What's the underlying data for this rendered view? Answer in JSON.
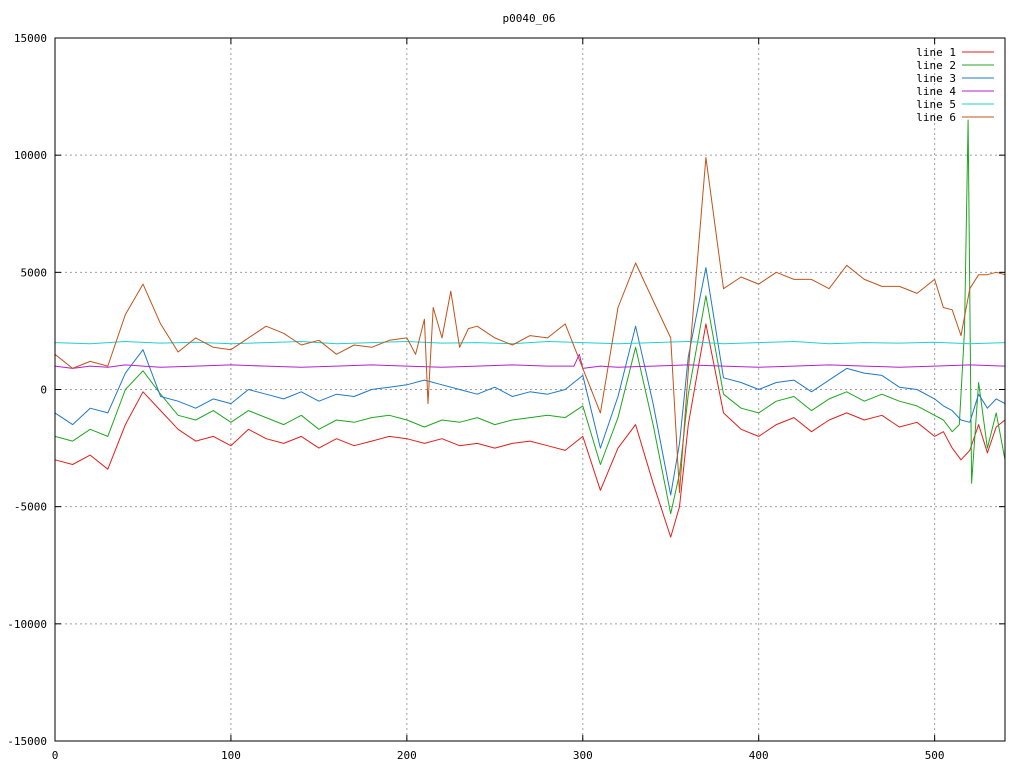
{
  "chart_data": {
    "type": "line",
    "title": "p0040_06",
    "xlabel": "",
    "ylabel": "",
    "xlim": [
      0,
      540
    ],
    "ylim": [
      -15000,
      15000
    ],
    "x_ticks": [
      0,
      100,
      200,
      300,
      400,
      500
    ],
    "y_ticks": [
      -15000,
      -10000,
      -5000,
      0,
      5000,
      10000,
      15000
    ],
    "x_tick_labels": [
      "0",
      "100",
      "200",
      "300",
      "400",
      "500"
    ],
    "y_tick_labels": [
      "-15000",
      "-10000",
      "-5000",
      "0",
      "5000",
      "10000",
      "15000"
    ],
    "grid": true,
    "legend_position": "top-right",
    "series": [
      {
        "name": "line 1",
        "color": "#e0201b",
        "x": [
          0,
          10,
          20,
          30,
          40,
          50,
          60,
          70,
          80,
          90,
          100,
          110,
          120,
          130,
          140,
          150,
          160,
          170,
          180,
          190,
          200,
          210,
          220,
          230,
          240,
          250,
          260,
          270,
          280,
          290,
          300,
          310,
          320,
          330,
          340,
          350,
          355,
          360,
          370,
          380,
          390,
          400,
          410,
          420,
          430,
          440,
          450,
          460,
          470,
          480,
          490,
          500,
          505,
          510,
          515,
          520,
          525,
          530,
          535,
          540
        ],
        "y": [
          -3000,
          -3200,
          -2800,
          -3400,
          -1500,
          -100,
          -900,
          -1700,
          -2200,
          -2000,
          -2400,
          -1700,
          -2100,
          -2300,
          -2000,
          -2500,
          -2100,
          -2400,
          -2200,
          -2000,
          -2100,
          -2300,
          -2100,
          -2400,
          -2300,
          -2500,
          -2300,
          -2200,
          -2400,
          -2600,
          -2000,
          -4300,
          -2500,
          -1500,
          -4000,
          -6300,
          -5000,
          -1500,
          2800,
          -1000,
          -1700,
          -2000,
          -1500,
          -1200,
          -1800,
          -1300,
          -1000,
          -1300,
          -1100,
          -1600,
          -1400,
          -2000,
          -1800,
          -2500,
          -3000,
          -2600,
          -1500,
          -2700,
          -1600,
          -1300
        ]
      },
      {
        "name": "line 2",
        "color": "#1fa71f",
        "x": [
          0,
          10,
          20,
          30,
          40,
          50,
          60,
          70,
          80,
          90,
          100,
          110,
          120,
          130,
          140,
          150,
          160,
          170,
          180,
          190,
          200,
          210,
          220,
          230,
          240,
          250,
          260,
          270,
          280,
          290,
          300,
          310,
          320,
          330,
          340,
          350,
          355,
          360,
          370,
          380,
          390,
          400,
          410,
          420,
          430,
          440,
          450,
          460,
          470,
          480,
          490,
          500,
          505,
          510,
          514,
          517,
          519,
          521,
          525,
          530,
          535,
          540
        ],
        "y": [
          -2000,
          -2200,
          -1700,
          -2000,
          0,
          800,
          -200,
          -1100,
          -1300,
          -900,
          -1400,
          -900,
          -1200,
          -1500,
          -1100,
          -1700,
          -1300,
          -1400,
          -1200,
          -1100,
          -1300,
          -1600,
          -1300,
          -1400,
          -1200,
          -1500,
          -1300,
          -1200,
          -1100,
          -1200,
          -700,
          -3200,
          -1200,
          1800,
          -1500,
          -5300,
          -3600,
          -200,
          4000,
          -200,
          -800,
          -1000,
          -500,
          -300,
          -900,
          -400,
          -100,
          -500,
          -200,
          -500,
          -700,
          -1100,
          -1300,
          -1800,
          -1500,
          2500,
          11500,
          -4000,
          300,
          -2500,
          -1000,
          -3000
        ]
      },
      {
        "name": "line 3",
        "color": "#1f78c8",
        "x": [
          0,
          10,
          20,
          30,
          40,
          50,
          60,
          70,
          80,
          90,
          100,
          110,
          120,
          130,
          140,
          150,
          160,
          170,
          180,
          190,
          200,
          210,
          220,
          230,
          240,
          250,
          260,
          270,
          280,
          290,
          300,
          310,
          320,
          330,
          340,
          350,
          355,
          360,
          370,
          380,
          390,
          400,
          410,
          420,
          430,
          440,
          450,
          460,
          470,
          480,
          490,
          500,
          505,
          510,
          515,
          520,
          525,
          530,
          535,
          540
        ],
        "y": [
          -1000,
          -1500,
          -800,
          -1000,
          700,
          1700,
          -300,
          -500,
          -800,
          -400,
          -600,
          0,
          -200,
          -400,
          -100,
          -500,
          -200,
          -300,
          0,
          100,
          200,
          400,
          200,
          0,
          -200,
          100,
          -300,
          -100,
          -200,
          0,
          600,
          -2500,
          -300,
          2700,
          -600,
          -4500,
          -2300,
          1400,
          5200,
          500,
          300,
          0,
          300,
          400,
          -100,
          400,
          900,
          700,
          600,
          100,
          0,
          -400,
          -700,
          -900,
          -1300,
          -1400,
          -200,
          -800,
          -400,
          -600
        ]
      },
      {
        "name": "line 4",
        "color": "#b41fd1",
        "x": [
          0,
          10,
          20,
          30,
          40,
          50,
          60,
          80,
          100,
          120,
          140,
          160,
          180,
          200,
          220,
          240,
          260,
          280,
          295,
          298,
          300,
          310,
          320,
          340,
          360,
          380,
          400,
          420,
          440,
          460,
          480,
          500,
          520,
          540
        ],
        "y": [
          1000,
          900,
          1000,
          950,
          1050,
          1000,
          950,
          1000,
          1050,
          1000,
          950,
          1000,
          1050,
          1000,
          950,
          1000,
          1050,
          1000,
          1000,
          1500,
          900,
          1000,
          950,
          1000,
          1050,
          1000,
          950,
          1000,
          1050,
          1000,
          950,
          1000,
          1050,
          1000
        ]
      },
      {
        "name": "line 5",
        "color": "#1fd1d1",
        "x": [
          0,
          20,
          40,
          60,
          80,
          100,
          120,
          140,
          160,
          180,
          200,
          220,
          240,
          260,
          280,
          300,
          320,
          340,
          360,
          380,
          400,
          420,
          440,
          460,
          480,
          500,
          520,
          540
        ],
        "y": [
          2000,
          1950,
          2050,
          1980,
          2020,
          1950,
          2000,
          2050,
          1950,
          2000,
          2050,
          1980,
          2000,
          1950,
          2050,
          2000,
          1950,
          2000,
          2050,
          1950,
          2000,
          2050,
          1950,
          2000,
          1980,
          2020,
          1950,
          2000
        ]
      },
      {
        "name": "line 6",
        "color": "#c0541b",
        "x": [
          0,
          10,
          20,
          30,
          40,
          50,
          60,
          70,
          80,
          90,
          100,
          110,
          120,
          130,
          140,
          150,
          160,
          170,
          180,
          190,
          200,
          205,
          210,
          212,
          215,
          220,
          225,
          230,
          235,
          240,
          250,
          260,
          270,
          280,
          290,
          300,
          310,
          320,
          330,
          340,
          350,
          355,
          360,
          370,
          380,
          390,
          400,
          410,
          420,
          430,
          440,
          450,
          460,
          470,
          480,
          490,
          500,
          505,
          510,
          515,
          520,
          525,
          530,
          535,
          540
        ],
        "y": [
          1500,
          900,
          1200,
          1000,
          3200,
          4500,
          2800,
          1600,
          2200,
          1800,
          1700,
          2200,
          2700,
          2400,
          1900,
          2100,
          1500,
          1900,
          1800,
          2100,
          2200,
          1500,
          3000,
          -600,
          3500,
          2200,
          4200,
          1800,
          2600,
          2700,
          2200,
          1900,
          2300,
          2200,
          2800,
          900,
          -1000,
          3500,
          5400,
          3800,
          2200,
          -4400,
          800,
          9900,
          4300,
          4800,
          4500,
          5000,
          4700,
          4700,
          4300,
          5300,
          4700,
          4400,
          4400,
          4100,
          4700,
          3500,
          3400,
          2300,
          4300,
          4900,
          4900,
          5000,
          4900
        ]
      }
    ]
  }
}
